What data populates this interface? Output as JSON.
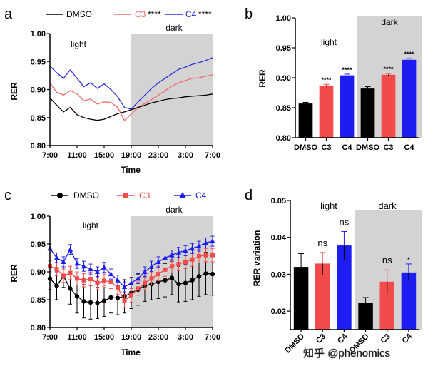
{
  "panels": {
    "a": "a",
    "b": "b",
    "c": "c",
    "d": "d"
  },
  "watermark": "知乎 @phenomics",
  "colors": {
    "DMSO": "#000000",
    "C3_line": "#f26b6b",
    "C4_line": "#2b2bd9",
    "C3_bar": "#f24b4b",
    "C4_bar": "#1d1df2",
    "dark_shade": "#d3d3d3"
  },
  "chart_data": [
    {
      "id": "a",
      "type": "line",
      "title": "",
      "xlabel": "Time",
      "ylabel": "RER",
      "xlim": [
        7,
        31
      ],
      "ylim": [
        0.8,
        1.0
      ],
      "yticks": [
        "0.80",
        "0.85",
        "0.90",
        "0.95",
        "1.00"
      ],
      "xticks": [
        "7:00",
        "11:00",
        "15:00",
        "19:00",
        "23:00",
        "3:00",
        "7:00"
      ],
      "xtick_values": [
        7,
        11,
        15,
        19,
        23,
        27,
        31
      ],
      "dark_period": [
        19,
        31
      ],
      "annotations": {
        "light": "light",
        "dark": "dark"
      },
      "legend": [
        {
          "name": "DMSO",
          "sig": ""
        },
        {
          "name": "C3",
          "sig": "****"
        },
        {
          "name": "C4",
          "sig": "****"
        }
      ],
      "series": [
        {
          "name": "DMSO",
          "x": [
            7,
            8,
            9,
            10,
            11,
            12,
            13,
            14,
            15,
            16,
            17,
            18,
            19,
            20,
            21,
            22,
            23,
            24,
            25,
            26,
            27,
            28,
            29,
            30,
            31
          ],
          "values": [
            0.885,
            0.872,
            0.86,
            0.868,
            0.855,
            0.85,
            0.847,
            0.845,
            0.847,
            0.852,
            0.857,
            0.86,
            0.864,
            0.868,
            0.872,
            0.876,
            0.879,
            0.882,
            0.884,
            0.885,
            0.887,
            0.888,
            0.889,
            0.89,
            0.892
          ]
        },
        {
          "name": "C3",
          "x": [
            7,
            8,
            9,
            10,
            11,
            12,
            13,
            14,
            15,
            16,
            17,
            18,
            19,
            20,
            21,
            22,
            23,
            24,
            25,
            26,
            27,
            28,
            29,
            30,
            31
          ],
          "values": [
            0.912,
            0.895,
            0.89,
            0.898,
            0.892,
            0.88,
            0.883,
            0.874,
            0.878,
            0.877,
            0.868,
            0.845,
            0.856,
            0.868,
            0.875,
            0.882,
            0.89,
            0.898,
            0.906,
            0.912,
            0.916,
            0.92,
            0.921,
            0.924,
            0.926
          ]
        },
        {
          "name": "C4",
          "x": [
            7,
            8,
            9,
            10,
            11,
            12,
            13,
            14,
            15,
            16,
            17,
            18,
            19,
            20,
            21,
            22,
            23,
            24,
            25,
            26,
            27,
            28,
            29,
            30,
            31
          ],
          "values": [
            0.942,
            0.93,
            0.92,
            0.935,
            0.92,
            0.905,
            0.912,
            0.902,
            0.91,
            0.9,
            0.887,
            0.868,
            0.865,
            0.878,
            0.89,
            0.902,
            0.912,
            0.92,
            0.928,
            0.936,
            0.94,
            0.945,
            0.948,
            0.952,
            0.957
          ]
        }
      ]
    },
    {
      "id": "b",
      "type": "bar",
      "title": "",
      "xlabel": "",
      "ylabel": "RER",
      "ylim": [
        0.8,
        1.0
      ],
      "yticks": [
        "0.80",
        "0.85",
        "0.90",
        "0.95",
        "1.00"
      ],
      "categories": [
        "DMSO",
        "C3",
        "C4",
        "DMSO",
        "C3",
        "C4"
      ],
      "groups": [
        "light",
        "light",
        "light",
        "dark",
        "dark",
        "dark"
      ],
      "annotations": {
        "light": "light",
        "dark": "dark"
      },
      "values": [
        0.857,
        0.887,
        0.904,
        0.882,
        0.905,
        0.93
      ],
      "errors": [
        0.002,
        0.002,
        0.002,
        0.003,
        0.002,
        0.002
      ],
      "significance": [
        "",
        "****",
        "****",
        "",
        "****",
        "****"
      ]
    },
    {
      "id": "c",
      "type": "line",
      "title": "",
      "xlabel": "Time",
      "ylabel": "RER",
      "xlim": [
        7,
        31
      ],
      "ylim": [
        0.8,
        1.0
      ],
      "yticks": [
        "0.80",
        "0.85",
        "0.90",
        "0.95",
        "1.00"
      ],
      "xticks": [
        "7:00",
        "11:00",
        "15:00",
        "19:00",
        "23:00",
        "3:00",
        "7:00"
      ],
      "xtick_values": [
        7,
        11,
        15,
        19,
        23,
        27,
        31
      ],
      "dark_period": [
        19,
        31
      ],
      "annotations": {
        "light": "light",
        "dark": "dark"
      },
      "legend": [
        {
          "name": "DMSO"
        },
        {
          "name": "C3"
        },
        {
          "name": "C4"
        }
      ],
      "series": [
        {
          "name": "DMSO",
          "x": [
            7,
            8,
            9,
            10,
            11,
            12,
            13,
            14,
            15,
            16,
            17,
            18,
            19,
            20,
            21,
            22,
            23,
            24,
            25,
            26,
            27,
            28,
            29,
            30,
            31
          ],
          "values": [
            0.888,
            0.875,
            0.892,
            0.87,
            0.856,
            0.847,
            0.845,
            0.844,
            0.848,
            0.854,
            0.853,
            0.856,
            0.862,
            0.868,
            0.875,
            0.878,
            0.882,
            0.885,
            0.889,
            0.878,
            0.88,
            0.885,
            0.892,
            0.897,
            0.896
          ],
          "errors": [
            0.02,
            0.025,
            0.02,
            0.028,
            0.03,
            0.03,
            0.03,
            0.028,
            0.028,
            0.028,
            0.03,
            0.03,
            0.028,
            0.028,
            0.028,
            0.028,
            0.03,
            0.03,
            0.03,
            0.032,
            0.033,
            0.035,
            0.036,
            0.038,
            0.038
          ]
        },
        {
          "name": "C3",
          "x": [
            7,
            8,
            9,
            10,
            11,
            12,
            13,
            14,
            15,
            16,
            17,
            18,
            19,
            20,
            21,
            22,
            23,
            24,
            25,
            26,
            27,
            28,
            29,
            30,
            31
          ],
          "values": [
            0.91,
            0.905,
            0.893,
            0.898,
            0.888,
            0.885,
            0.887,
            0.88,
            0.884,
            0.882,
            0.872,
            0.848,
            0.858,
            0.87,
            0.88,
            0.888,
            0.896,
            0.904,
            0.91,
            0.914,
            0.918,
            0.922,
            0.928,
            0.93,
            0.93
          ],
          "errors": [
            0.01,
            0.012,
            0.012,
            0.012,
            0.012,
            0.012,
            0.012,
            0.012,
            0.012,
            0.012,
            0.012,
            0.012,
            0.012,
            0.012,
            0.012,
            0.012,
            0.012,
            0.012,
            0.012,
            0.012,
            0.012,
            0.012,
            0.012,
            0.012,
            0.012
          ]
        },
        {
          "name": "C4",
          "x": [
            7,
            8,
            9,
            10,
            11,
            12,
            13,
            14,
            15,
            16,
            17,
            18,
            19,
            20,
            21,
            22,
            23,
            24,
            25,
            26,
            27,
            28,
            29,
            30,
            31
          ],
          "values": [
            0.942,
            0.925,
            0.918,
            0.94,
            0.915,
            0.91,
            0.905,
            0.9,
            0.908,
            0.896,
            0.885,
            0.873,
            0.88,
            0.888,
            0.9,
            0.91,
            0.918,
            0.925,
            0.93,
            0.935,
            0.938,
            0.942,
            0.946,
            0.952,
            0.955
          ],
          "errors": [
            0.008,
            0.009,
            0.009,
            0.009,
            0.009,
            0.009,
            0.009,
            0.009,
            0.009,
            0.009,
            0.009,
            0.009,
            0.009,
            0.009,
            0.009,
            0.009,
            0.009,
            0.009,
            0.009,
            0.009,
            0.009,
            0.009,
            0.009,
            0.009,
            0.009
          ]
        }
      ]
    },
    {
      "id": "d",
      "type": "bar",
      "title": "",
      "xlabel": "",
      "ylabel": "RER variation",
      "ylim": [
        0.015,
        0.05
      ],
      "yticks": [
        "0.02",
        "0.03",
        "0.04",
        "0.05"
      ],
      "ytick_values": [
        0.02,
        0.03,
        0.04,
        0.05
      ],
      "categories": [
        "DMSO",
        "C3",
        "C4",
        "DMSO",
        "C3",
        "C4"
      ],
      "groups": [
        "light",
        "light",
        "light",
        "dark",
        "dark",
        "dark"
      ],
      "annotations": {
        "light": "light",
        "dark": "dark"
      },
      "values": [
        0.032,
        0.0329,
        0.0378,
        0.0223,
        0.028,
        0.0305
      ],
      "errors": [
        0.0036,
        0.003,
        0.0038,
        0.0014,
        0.0032,
        0.0023
      ],
      "significance": [
        "",
        "ns",
        "ns",
        "",
        "ns",
        "*"
      ]
    }
  ]
}
